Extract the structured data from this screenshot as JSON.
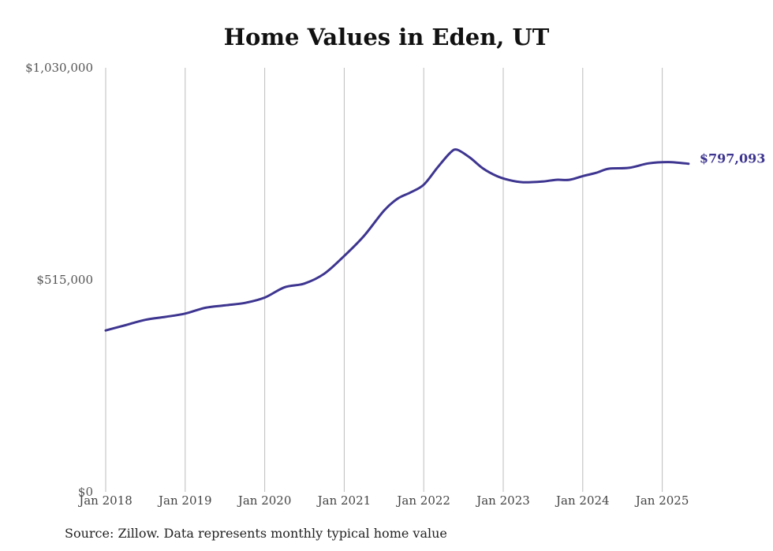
{
  "chart_data": {
    "type": "line",
    "title": "Home Values in Eden, UT",
    "source": "Source: Zillow. Data represents monthly typical home value",
    "ylim": [
      0,
      1030000
    ],
    "y_ticks": [
      "$0",
      "$515,000",
      "$1,030,000"
    ],
    "y_tick_values": [
      0,
      515000,
      1030000
    ],
    "x_ticks": [
      "Jan 2018",
      "Jan 2019",
      "Jan 2020",
      "Jan 2021",
      "Jan 2022",
      "Jan 2023",
      "Jan 2024",
      "Jan 2025"
    ],
    "x_tick_values": [
      2018,
      2019,
      2020,
      2021,
      2022,
      2023,
      2024,
      2025
    ],
    "xlim": [
      2018,
      2025.33
    ],
    "grid": "vertical",
    "line_color": "#3d3590",
    "end_label": "$797,093",
    "series": [
      {
        "values": [
          [
            2018.0,
            392000
          ],
          [
            2018.25,
            405000
          ],
          [
            2018.5,
            418000
          ],
          [
            2018.75,
            425000
          ],
          [
            2019.0,
            433000
          ],
          [
            2019.25,
            447000
          ],
          [
            2019.5,
            453000
          ],
          [
            2019.75,
            459000
          ],
          [
            2020.0,
            472000
          ],
          [
            2020.25,
            497000
          ],
          [
            2020.5,
            506000
          ],
          [
            2020.75,
            530000
          ],
          [
            2021.0,
            573000
          ],
          [
            2021.25,
            622000
          ],
          [
            2021.5,
            683000
          ],
          [
            2021.67,
            712000
          ],
          [
            2021.83,
            727000
          ],
          [
            2022.0,
            746000
          ],
          [
            2022.17,
            787000
          ],
          [
            2022.33,
            823000
          ],
          [
            2022.42,
            831000
          ],
          [
            2022.58,
            812000
          ],
          [
            2022.75,
            785000
          ],
          [
            2022.92,
            767000
          ],
          [
            2023.08,
            757000
          ],
          [
            2023.25,
            752000
          ],
          [
            2023.5,
            754000
          ],
          [
            2023.67,
            758000
          ],
          [
            2023.83,
            758000
          ],
          [
            2024.0,
            767000
          ],
          [
            2024.17,
            775000
          ],
          [
            2024.33,
            785000
          ],
          [
            2024.58,
            787000
          ],
          [
            2024.83,
            798000
          ],
          [
            2025.08,
            801000
          ],
          [
            2025.33,
            797093
          ]
        ]
      }
    ]
  }
}
